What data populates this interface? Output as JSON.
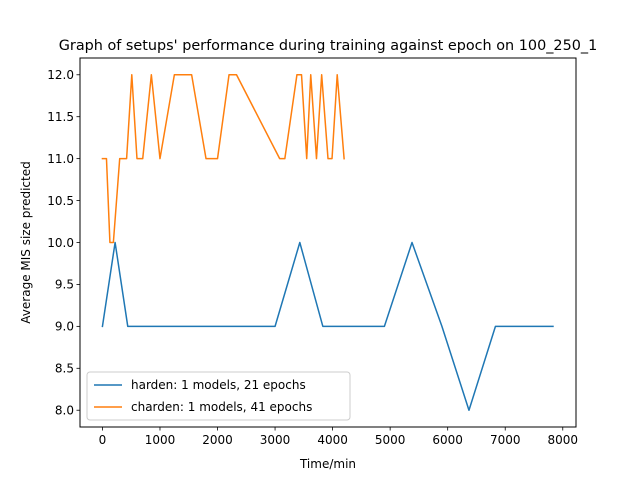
{
  "chart_data": {
    "type": "line",
    "title": "Graph of setups' performance during training against epoch on 100_250_1",
    "xlabel": "Time/min",
    "ylabel": "Average MIS size predicted",
    "xlim": [
      -390,
      8230
    ],
    "ylim": [
      7.8,
      12.2
    ],
    "xticks": [
      0,
      1000,
      2000,
      3000,
      4000,
      5000,
      6000,
      7000,
      8000
    ],
    "xtick_labels": [
      "0",
      "1000",
      "2000",
      "3000",
      "4000",
      "5000",
      "6000",
      "7000",
      "8000"
    ],
    "yticks": [
      8.0,
      8.5,
      9.0,
      9.5,
      10.0,
      10.5,
      11.0,
      11.5,
      12.0
    ],
    "ytick_labels": [
      "8.0",
      "8.5",
      "9.0",
      "9.5",
      "10.0",
      "10.5",
      "11.0",
      "11.5",
      "12.0"
    ],
    "grid": false,
    "legend_position": "lower-left",
    "series": [
      {
        "name": "harden: 1 models, 21 epochs",
        "color": "#1f77b4",
        "x": [
          0,
          220,
          440,
          3000,
          3430,
          3830,
          4900,
          5380,
          5900,
          6370,
          6830,
          7830
        ],
        "y": [
          9.0,
          10.0,
          9.0,
          9.0,
          10.0,
          9.0,
          9.0,
          10.0,
          9.0,
          8.0,
          9.0,
          9.0
        ]
      },
      {
        "name": "charden: 1 models, 41 epochs",
        "color": "#ff7f0e",
        "x": [
          0,
          70,
          130,
          190,
          300,
          420,
          510,
          600,
          700,
          850,
          1000,
          1250,
          1550,
          1800,
          2000,
          2200,
          2330,
          3080,
          3170,
          3380,
          3460,
          3550,
          3620,
          3720,
          3810,
          3920,
          3990,
          4080,
          4200
        ],
        "y": [
          11.0,
          11.0,
          10.0,
          10.0,
          11.0,
          11.0,
          12.0,
          11.0,
          11.0,
          12.0,
          11.0,
          12.0,
          12.0,
          11.0,
          11.0,
          12.0,
          12.0,
          11.0,
          11.0,
          12.0,
          12.0,
          11.0,
          12.0,
          11.0,
          12.0,
          11.0,
          11.0,
          12.0,
          11.0
        ]
      }
    ]
  }
}
